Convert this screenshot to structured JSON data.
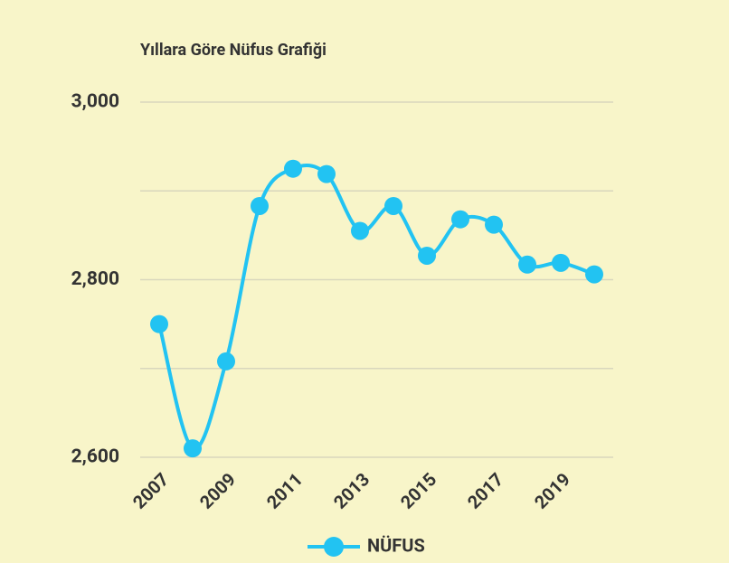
{
  "chart_data": {
    "type": "line",
    "title": "Yıllara Göre Nüfus Grafiği",
    "categories": [
      "2007",
      null,
      "2009",
      null,
      "2011",
      null,
      "2013",
      null,
      "2015",
      null,
      "2017",
      null,
      "2019",
      null
    ],
    "series": [
      {
        "name": "NÜFUS",
        "color": "#22c3f2",
        "values": [
          2750,
          2610,
          2708,
          2883,
          2925,
          2919,
          2855,
          2883,
          2827,
          2868,
          2862,
          2817,
          2819,
          2806
        ]
      }
    ],
    "ylim": [
      2600,
      3000
    ],
    "yticks": [
      {
        "value": 2600,
        "label": "2,600"
      },
      {
        "value": 2800,
        "label": "2,800"
      },
      {
        "value": 3000,
        "label": "3,000"
      }
    ],
    "yminorticks": [
      2700,
      2900
    ],
    "grid": true,
    "smooth": true,
    "legend": "bottom"
  }
}
